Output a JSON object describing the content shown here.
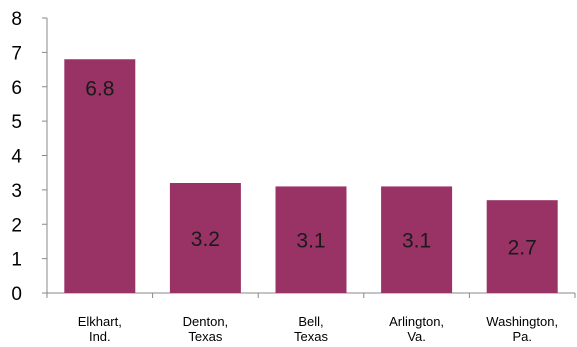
{
  "chart_data": {
    "type": "bar",
    "categories": [
      [
        "Elkhart,",
        "Ind."
      ],
      [
        "Denton,",
        "Texas"
      ],
      [
        "Bell,",
        "Texas"
      ],
      [
        "Arlington,",
        "Va."
      ],
      [
        "Washington,",
        "Pa."
      ]
    ],
    "values": [
      6.8,
      3.2,
      3.1,
      3.1,
      2.7
    ],
    "data_labels": [
      "6.8",
      "3.2",
      "3.1",
      "3.1",
      "2.7"
    ],
    "yticks": [
      "0",
      "1",
      "2",
      "3",
      "4",
      "5",
      "6",
      "7",
      "8"
    ],
    "ylim": [
      0,
      8
    ],
    "title": "",
    "xlabel": "",
    "ylabel": "",
    "grid": false,
    "legend": false,
    "bar_color": "#993366",
    "axis_color": "#888888"
  }
}
